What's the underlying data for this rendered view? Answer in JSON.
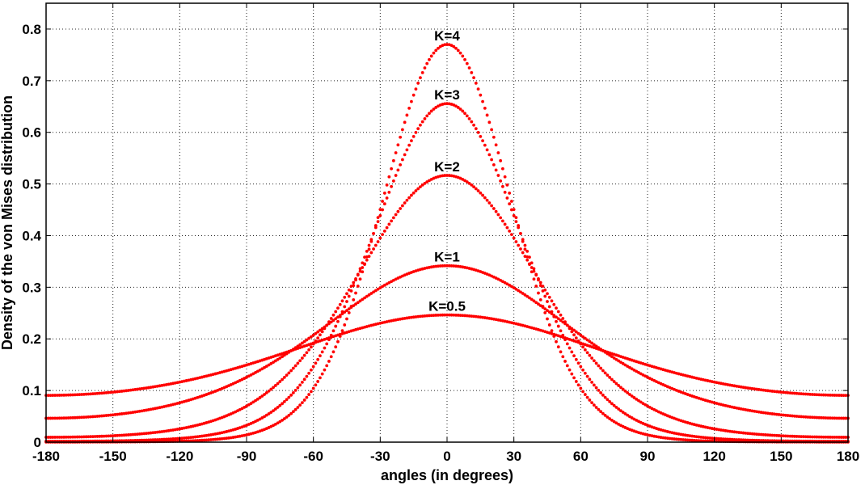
{
  "chart_data": {
    "type": "scatter",
    "title": "",
    "xlabel": "angles (in degrees)",
    "ylabel": "Density of the von Mises distribution",
    "xlim": [
      -180,
      180
    ],
    "ylim": [
      0,
      0.85
    ],
    "xticks": [
      -180,
      -150,
      -120,
      -90,
      -60,
      -30,
      0,
      30,
      60,
      90,
      120,
      150,
      180
    ],
    "yticks": [
      0,
      0.1,
      0.2,
      0.3,
      0.4,
      0.5,
      0.6,
      0.7,
      0.8
    ],
    "grid": true,
    "marker_color": "#ff0000",
    "x_step_deg": 1,
    "series": [
      {
        "name": "K=0.5",
        "kappa": 0.5,
        "peak": 0.2463
      },
      {
        "name": "K=1",
        "kappa": 1,
        "peak": 0.3417
      },
      {
        "name": "K=2",
        "kappa": 2,
        "peak": 0.5166
      },
      {
        "name": "K=3",
        "kappa": 3,
        "peak": 0.6556
      },
      {
        "name": "K=4",
        "kappa": 4,
        "peak": 0.7702
      }
    ]
  }
}
